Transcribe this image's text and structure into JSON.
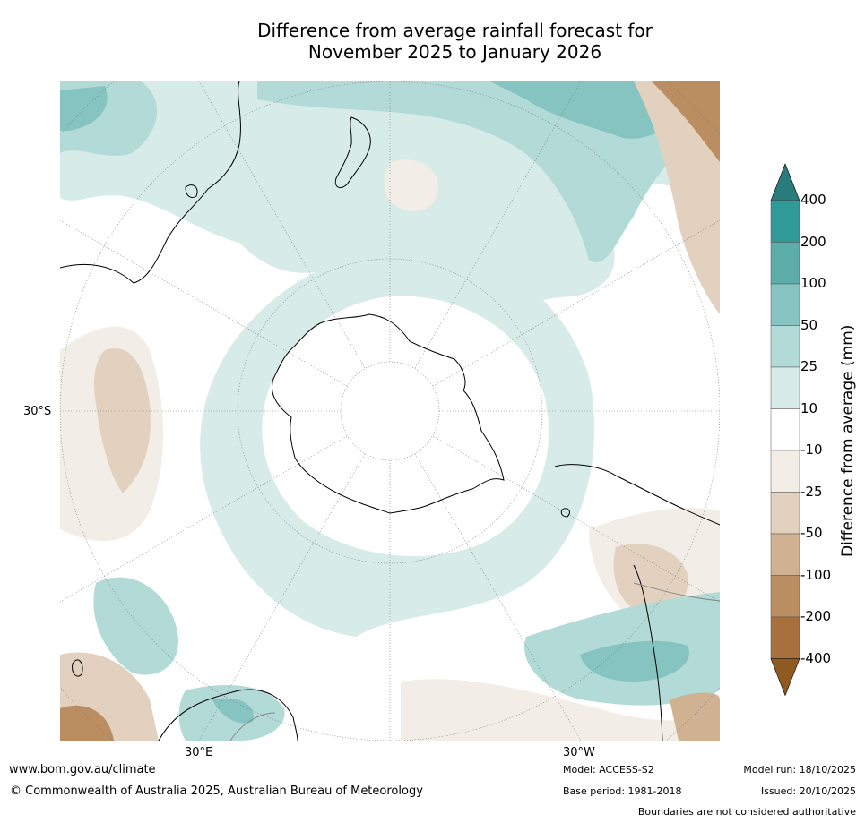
{
  "title_line1": "Difference from average rainfall forecast for",
  "title_line2": "November 2025 to January 2026",
  "map": {
    "lat_label": "30°S",
    "lon_label_east": "30°E",
    "lon_label_west": "30°W"
  },
  "colorbar": {
    "title": "Difference from average (mm)",
    "bins": [
      {
        "label": "400",
        "color": "#2a7b7b"
      },
      {
        "label": "200",
        "color": "#2f9a98"
      },
      {
        "label": "100",
        "color": "#5cadaa"
      },
      {
        "label": "50",
        "color": "#85c4c0"
      },
      {
        "label": "25",
        "color": "#b2dad7"
      },
      {
        "label": "10",
        "color": "#d7ebe9"
      },
      {
        "label": "-10",
        "color": "#ffffff"
      },
      {
        "label": "-25",
        "color": "#f2ede6"
      },
      {
        "label": "-50",
        "color": "#e3d1c0"
      },
      {
        "label": "-100",
        "color": "#d0b192"
      },
      {
        "label": "-200",
        "color": "#bb8e62"
      },
      {
        "label": "-400",
        "color": "#a8703c"
      }
    ],
    "min_arrow_color": "#8f5a22"
  },
  "footer": {
    "url": "www.bom.gov.au/climate",
    "copyright": "© Commonwealth of Australia 2025, Australian Bureau of Meteorology",
    "model": "Model: ACCESS-S2",
    "base_period": "Base period: 1981-2018",
    "model_run": "Model run: 18/10/2025",
    "issued": "Issued: 20/10/2025",
    "disclaimer": "Boundaries are not considered authoritative"
  }
}
